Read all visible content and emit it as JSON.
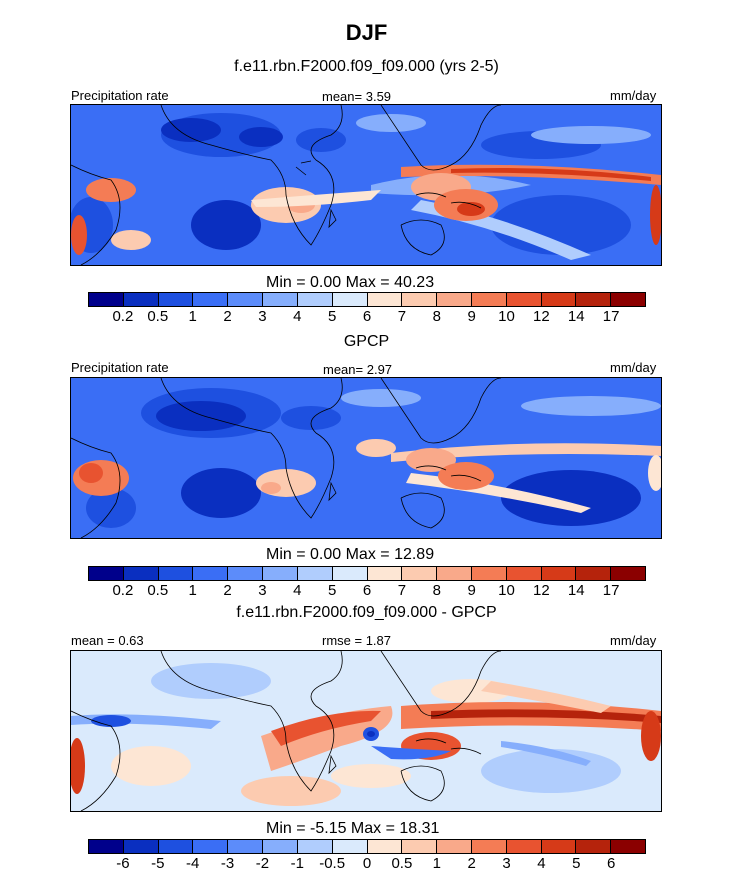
{
  "title": "DJF",
  "subtitle": "f.e11.rbn.F2000.f09_f09.000 (yrs 2-5)",
  "panels": [
    {
      "left_label": "Precipitation rate",
      "center_label": "mean=   3.59",
      "right_label": "mm/day",
      "minmax": "Min =   0.00 Max =  40.23",
      "caption": "GPCP",
      "colorbar": {
        "colors": [
          "#00008b",
          "#0a2fc0",
          "#1e50e0",
          "#3a6ef5",
          "#5c8cfa",
          "#86aefc",
          "#b0cdfd",
          "#daeafc",
          "#fde6d4",
          "#fccbb0",
          "#f9a98a",
          "#f47c55",
          "#e85330",
          "#d63a18",
          "#b5230c",
          "#8b0000"
        ],
        "ticks": [
          "0.2",
          "0.5",
          "1",
          "2",
          "3",
          "4",
          "5",
          "6",
          "7",
          "8",
          "9",
          "10",
          "12",
          "14",
          "17"
        ]
      }
    },
    {
      "left_label": "Precipitation rate",
      "center_label": "mean=   2.97",
      "right_label": "mm/day",
      "minmax": "Min =   0.00 Max =  12.89",
      "caption": "f.e11.rbn.F2000.f09_f09.000 - GPCP",
      "colorbar": {
        "colors": [
          "#00008b",
          "#0a2fc0",
          "#1e50e0",
          "#3a6ef5",
          "#5c8cfa",
          "#86aefc",
          "#b0cdfd",
          "#daeafc",
          "#fde6d4",
          "#fccbb0",
          "#f9a98a",
          "#f47c55",
          "#e85330",
          "#d63a18",
          "#b5230c",
          "#8b0000"
        ],
        "ticks": [
          "0.2",
          "0.5",
          "1",
          "2",
          "3",
          "4",
          "5",
          "6",
          "7",
          "8",
          "9",
          "10",
          "12",
          "14",
          "17"
        ]
      }
    },
    {
      "left_label": "mean =   0.63",
      "center_label": "rmse =   1.87",
      "right_label": "mm/day",
      "minmax": "Min =  -5.15 Max =  18.31",
      "caption": "",
      "colorbar": {
        "colors": [
          "#00008b",
          "#0a2fc0",
          "#1e50e0",
          "#3a6ef5",
          "#5c8cfa",
          "#86aefc",
          "#b0cdfd",
          "#daeafc",
          "#fde6d4",
          "#fccbb0",
          "#f9a98a",
          "#f47c55",
          "#e85330",
          "#d63a18",
          "#b5230c",
          "#8b0000"
        ],
        "ticks": [
          "-6",
          "-5",
          "-4",
          "-3",
          "-2",
          "-1",
          "-0.5",
          "0",
          "0.5",
          "1",
          "2",
          "3",
          "4",
          "5",
          "6"
        ]
      }
    }
  ]
}
